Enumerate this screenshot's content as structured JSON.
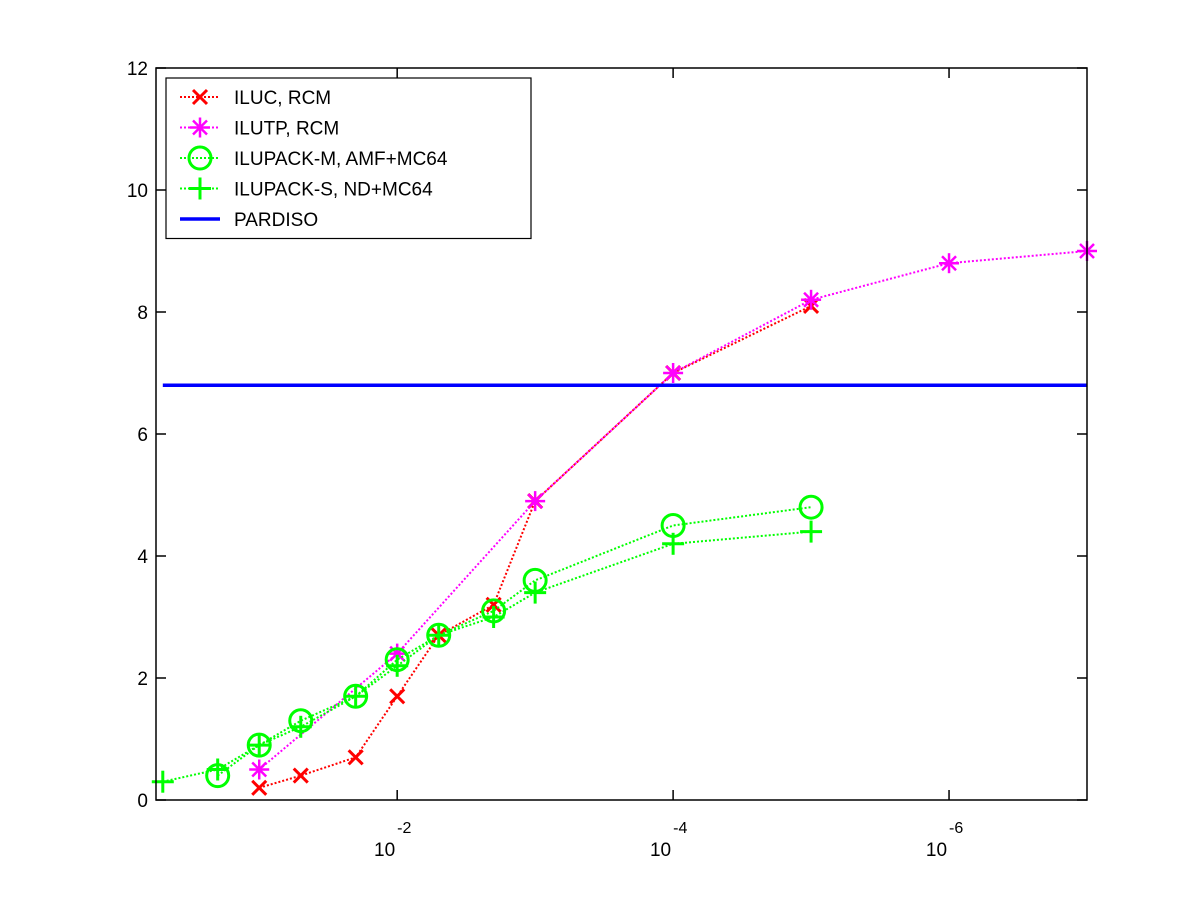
{
  "chart_data": {
    "type": "line",
    "title": "",
    "xlabel": "",
    "ylabel": "",
    "x_scale": "log-reversed",
    "xlim": [
      0.56,
      1e-07
    ],
    "ylim": [
      0,
      12
    ],
    "x_ticks": [
      {
        "value": 0.01,
        "base": "10",
        "exp": "-2"
      },
      {
        "value": 0.0001,
        "base": "10",
        "exp": "-4"
      },
      {
        "value": 1e-06,
        "base": "10",
        "exp": "-6"
      }
    ],
    "y_ticks": [
      0,
      2,
      4,
      6,
      8,
      10,
      12
    ],
    "grid": false,
    "legend_position": "top-left",
    "series": [
      {
        "name": "ILUC, RCM",
        "color": "#ff0000",
        "marker": "x",
        "line": "dotted",
        "x": [
          0.1,
          0.05,
          0.02,
          0.01,
          0.005,
          0.002,
          0.001,
          0.0001,
          1e-05
        ],
        "y": [
          0.2,
          0.4,
          0.7,
          1.7,
          2.7,
          3.2,
          4.9,
          7.0,
          8.1
        ]
      },
      {
        "name": "ILUTP, RCM",
        "color": "#ff00ff",
        "marker": "star",
        "line": "dotted",
        "x": [
          0.1,
          0.01,
          0.001,
          0.0001,
          1e-05,
          1e-06,
          1e-07
        ],
        "y": [
          0.5,
          2.4,
          4.9,
          7.0,
          8.2,
          8.8,
          9.0
        ]
      },
      {
        "name": "ILUPACK-M, AMF+MC64",
        "color": "#00ff00",
        "marker": "circle",
        "line": "dotted",
        "x": [
          0.2,
          0.1,
          0.05,
          0.02,
          0.01,
          0.005,
          0.002,
          0.001,
          0.0001,
          1e-05
        ],
        "y": [
          0.4,
          0.9,
          1.3,
          1.7,
          2.3,
          2.7,
          3.1,
          3.6,
          4.5,
          4.8
        ]
      },
      {
        "name": "ILUPACK-S, ND+MC64",
        "color": "#00ff00",
        "marker": "plus",
        "line": "dotted",
        "x": [
          0.5,
          0.2,
          0.1,
          0.05,
          0.02,
          0.01,
          0.005,
          0.002,
          0.001,
          0.0001,
          1e-05
        ],
        "y": [
          0.3,
          0.5,
          0.9,
          1.2,
          1.7,
          2.2,
          2.7,
          3.0,
          3.4,
          4.2,
          4.4
        ]
      },
      {
        "name": "PARDISO",
        "color": "#0000ff",
        "marker": "none",
        "line": "solid",
        "x": [
          0.5,
          1e-07
        ],
        "y": [
          6.8,
          6.8
        ]
      }
    ]
  }
}
